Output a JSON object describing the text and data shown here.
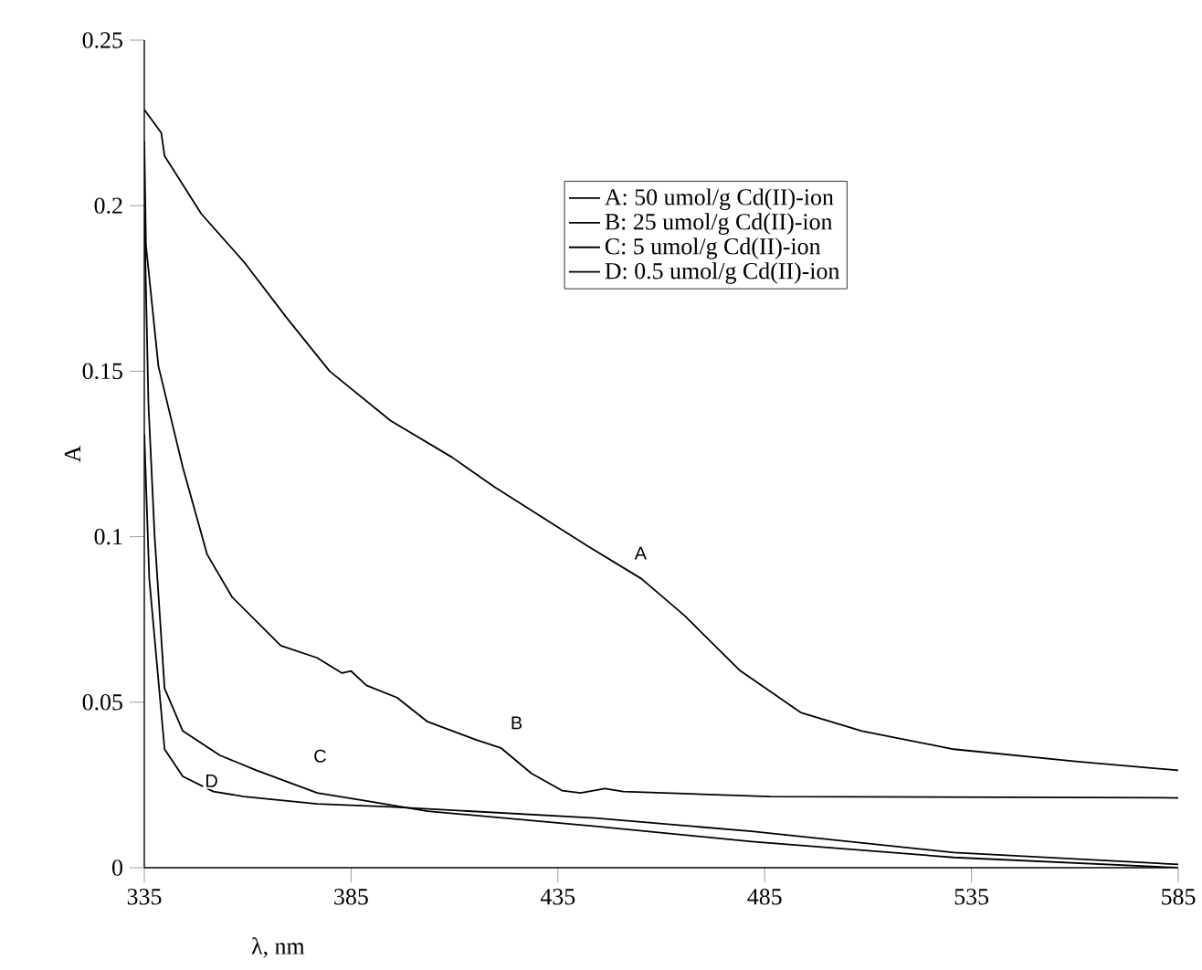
{
  "chart_data": {
    "type": "line",
    "xlabel": "λ, nm",
    "ylabel": "A",
    "xlim": [
      335,
      585
    ],
    "ylim": [
      0,
      0.25
    ],
    "xticks": [
      335,
      385,
      435,
      485,
      535,
      585
    ],
    "yticks": [
      0,
      0.05,
      0.1,
      0.15,
      0.2,
      0.25
    ],
    "grid": false,
    "legend": "top right",
    "marker": "none",
    "line_style": "solid",
    "series": [
      {
        "name": "A: 50 umol/g Cd(II)-ion",
        "color": "#000000",
        "x": [
          335,
          339.1,
          339.9,
          348.8,
          359.1,
          369.5,
          379.8,
          394.6,
          409.4,
          419.7,
          441.9,
          455.2,
          465.6,
          478.9,
          493.7,
          508.5,
          530.7,
          560.2,
          585
        ],
        "values": [
          0.229,
          0.222,
          0.215,
          0.1975,
          0.183,
          0.166,
          0.15,
          0.135,
          0.124,
          0.115,
          0.0974,
          0.0873,
          0.0762,
          0.0597,
          0.0469,
          0.0413,
          0.0358,
          0.0321,
          0.0294
        ]
      },
      {
        "name": "B: 25 umol/g Cd(II)-ion",
        "color": "#000000",
        "x": [
          335,
          335.4,
          338.4,
          344.3,
          350.2,
          356.2,
          368,
          376.8,
          382.8,
          385,
          388.7,
          396.1,
          403.5,
          415.3,
          421.2,
          428.6,
          436,
          440.5,
          446.4,
          450.8,
          486.3,
          585
        ],
        "values": [
          0.2196,
          0.188,
          0.1516,
          0.121,
          0.0946,
          0.0818,
          0.0671,
          0.0634,
          0.0588,
          0.0594,
          0.0551,
          0.0514,
          0.0441,
          0.0386,
          0.0362,
          0.0285,
          0.0233,
          0.0226,
          0.0239,
          0.023,
          0.0215,
          0.0211
        ]
      },
      {
        "name": "C: 5 umol/g Cd(II)-ion",
        "color": "#000000",
        "x": [
          335,
          336,
          337.5,
          339.9,
          344.3,
          353.2,
          362.1,
          376.8,
          388.7,
          403.5,
          444,
          481.8,
          530.7,
          585
        ],
        "values": [
          0.198,
          0.14,
          0.1,
          0.0542,
          0.0413,
          0.034,
          0.0294,
          0.0226,
          0.0202,
          0.0171,
          0.0125,
          0.0079,
          0.0031,
          0.0
        ]
      },
      {
        "name": "D: 0.5 umol/g Cd(II)-ion",
        "color": "#000000",
        "x": [
          335,
          336.2,
          339.9,
          344.3,
          351.7,
          359.1,
          376.8,
          394.6,
          444,
          481.8,
          530.7,
          585
        ],
        "values": [
          0.131,
          0.0873,
          0.0358,
          0.0276,
          0.023,
          0.0215,
          0.0193,
          0.0184,
          0.015,
          0.011,
          0.0046,
          0.001
        ]
      }
    ],
    "annotations": [
      "A",
      "B",
      "C",
      "D"
    ]
  }
}
